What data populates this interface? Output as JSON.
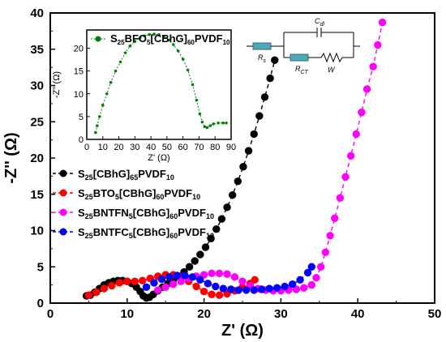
{
  "chart_data": [
    {
      "type": "scatter",
      "title": "",
      "xlabel": "Z' (Ω)",
      "ylabel": "-Z'' (Ω)",
      "xlim": [
        0,
        50
      ],
      "ylim": [
        0,
        40
      ],
      "xticks": [
        "0",
        "10",
        "20",
        "30",
        "40",
        "50"
      ],
      "yticks": [
        "0",
        "5",
        "10",
        "15",
        "20",
        "25",
        "30",
        "35",
        "40"
      ],
      "legend_position": "left-middle",
      "series": [
        {
          "name_main": "S",
          "name_parts": [
            [
              "25",
              true
            ],
            [
              "[CBhG]",
              false
            ],
            [
              "65",
              true
            ],
            [
              "PVDF",
              false
            ],
            [
              "10",
              true
            ]
          ],
          "color": "#000000",
          "points": [
            [
              4.7,
              1.0
            ],
            [
              5.2,
              1.1
            ],
            [
              5.8,
              1.5
            ],
            [
              6.4,
              2.0
            ],
            [
              7.0,
              2.5
            ],
            [
              7.6,
              2.8
            ],
            [
              8.2,
              3.0
            ],
            [
              8.8,
              3.1
            ],
            [
              9.4,
              3.1
            ],
            [
              10.0,
              3.0
            ],
            [
              10.6,
              2.7
            ],
            [
              11.2,
              2.2
            ],
            [
              11.7,
              1.6
            ],
            [
              12.1,
              1.0
            ],
            [
              12.5,
              0.7
            ],
            [
              12.9,
              0.8
            ],
            [
              13.4,
              1.2
            ],
            [
              14.0,
              1.7
            ],
            [
              14.6,
              2.2
            ],
            [
              15.3,
              2.7
            ],
            [
              16.0,
              3.2
            ],
            [
              16.7,
              3.7
            ],
            [
              17.4,
              4.3
            ],
            [
              18.1,
              5.0
            ],
            [
              18.8,
              5.8
            ],
            [
              19.5,
              6.7
            ],
            [
              20.2,
              7.7
            ],
            [
              20.9,
              8.9
            ],
            [
              21.6,
              10.2
            ],
            [
              22.3,
              11.6
            ],
            [
              23.0,
              13.2
            ],
            [
              23.7,
              14.9
            ],
            [
              24.4,
              16.8
            ],
            [
              25.1,
              18.8
            ],
            [
              25.8,
              21.0
            ],
            [
              26.5,
              23.3
            ],
            [
              27.2,
              25.8
            ],
            [
              27.9,
              28.4
            ],
            [
              28.6,
              31.0
            ],
            [
              29.2,
              33.5
            ]
          ]
        },
        {
          "name_main": "S",
          "name_parts": [
            [
              "25",
              true
            ],
            [
              "BTO",
              false
            ],
            [
              "5",
              true
            ],
            [
              "[CBhG]",
              false
            ],
            [
              "60",
              true
            ],
            [
              "PVDF",
              false
            ],
            [
              "10",
              true
            ]
          ],
          "color": "#ff0000",
          "points": [
            [
              5.0,
              1.1
            ],
            [
              6.0,
              1.5
            ],
            [
              7.0,
              2.0
            ],
            [
              8.0,
              2.4
            ],
            [
              9.0,
              2.8
            ],
            [
              10.0,
              3.0
            ],
            [
              11.0,
              3.0
            ],
            [
              12.0,
              3.1
            ],
            [
              13.0,
              3.4
            ],
            [
              14.0,
              3.7
            ],
            [
              15.0,
              3.9
            ],
            [
              16.0,
              3.9
            ],
            [
              17.0,
              3.6
            ],
            [
              18.0,
              3.0
            ],
            [
              19.0,
              2.3
            ],
            [
              20.0,
              1.6
            ],
            [
              21.0,
              1.2
            ],
            [
              22.0,
              1.1
            ],
            [
              23.0,
              1.3
            ],
            [
              24.0,
              1.7
            ],
            [
              25.0,
              2.2
            ],
            [
              26.0,
              2.7
            ],
            [
              26.6,
              3.2
            ]
          ]
        },
        {
          "name_main": "S",
          "name_parts": [
            [
              "25",
              true
            ],
            [
              "BNTFN",
              false
            ],
            [
              "5",
              true
            ],
            [
              "[CBhG]",
              false
            ],
            [
              "60",
              true
            ],
            [
              "PVDF",
              false
            ],
            [
              "10",
              true
            ]
          ],
          "color": "#ff00ff",
          "points": [
            [
              14.0,
              1.8
            ],
            [
              15.0,
              2.2
            ],
            [
              16.0,
              2.6
            ],
            [
              17.0,
              3.0
            ],
            [
              18.0,
              3.4
            ],
            [
              19.0,
              3.7
            ],
            [
              20.0,
              3.9
            ],
            [
              21.0,
              4.1
            ],
            [
              22.0,
              4.1
            ],
            [
              23.0,
              4.0
            ],
            [
              24.0,
              3.6
            ],
            [
              25.0,
              3.0
            ],
            [
              26.0,
              2.4
            ],
            [
              27.0,
              2.0
            ],
            [
              28.0,
              1.8
            ],
            [
              29.0,
              1.7
            ],
            [
              30.0,
              1.7
            ],
            [
              31.0,
              1.8
            ],
            [
              32.0,
              1.9
            ],
            [
              33.0,
              2.1
            ],
            [
              34.0,
              2.5
            ],
            [
              34.6,
              3.5
            ],
            [
              35.2,
              5.0
            ],
            [
              35.8,
              7.0
            ],
            [
              36.4,
              9.3
            ],
            [
              37.0,
              11.7
            ],
            [
              37.7,
              14.5
            ],
            [
              38.4,
              17.4
            ],
            [
              39.1,
              20.3
            ],
            [
              39.8,
              23.3
            ],
            [
              40.5,
              26.3
            ],
            [
              41.2,
              29.5
            ],
            [
              42.0,
              32.6
            ],
            [
              42.6,
              35.6
            ],
            [
              43.2,
              38.7
            ]
          ]
        },
        {
          "name_main": "S",
          "name_parts": [
            [
              "25",
              true
            ],
            [
              "BNTFC",
              false
            ],
            [
              "5",
              true
            ],
            [
              "[CBhG]",
              false
            ],
            [
              "60",
              true
            ],
            [
              "PVDF",
              false
            ],
            [
              "10",
              true
            ]
          ],
          "color": "#0000ff",
          "points": [
            [
              12.5,
              2.2
            ],
            [
              13.5,
              2.8
            ],
            [
              14.5,
              3.3
            ],
            [
              15.5,
              3.6
            ],
            [
              16.5,
              3.8
            ],
            [
              17.5,
              3.8
            ],
            [
              18.5,
              3.6
            ],
            [
              19.5,
              3.2
            ],
            [
              20.5,
              2.7
            ],
            [
              21.5,
              2.3
            ],
            [
              22.5,
              2.0
            ],
            [
              23.5,
              1.9
            ],
            [
              24.5,
              1.8
            ],
            [
              25.5,
              1.8
            ],
            [
              26.5,
              1.8
            ],
            [
              27.5,
              1.9
            ],
            [
              28.5,
              2.0
            ],
            [
              29.5,
              2.1
            ],
            [
              30.5,
              2.3
            ],
            [
              31.5,
              2.6
            ],
            [
              32.5,
              3.2
            ],
            [
              33.5,
              4.2
            ],
            [
              34.0,
              5.0
            ]
          ]
        }
      ],
      "inset": {
        "type": "scatter",
        "xlabel": "Z' (Ω)",
        "ylabel": "-Z'' (Ω)",
        "xlim": [
          0,
          90
        ],
        "ylim": [
          0,
          24
        ],
        "xticks": [
          "0",
          "10",
          "20",
          "30",
          "40",
          "50",
          "60",
          "70",
          "80",
          "90"
        ],
        "yticks": [
          "0",
          "5",
          "10",
          "15",
          "20"
        ],
        "legend_position": "top",
        "series": [
          {
            "name_main": "S",
            "name_parts": [
              [
                "25",
                true
              ],
              [
                "BFO",
                false
              ],
              [
                "5",
                true
              ],
              [
                "[CBhG]",
                false
              ],
              [
                "60",
                true
              ],
              [
                "PVDF",
                false
              ],
              [
                "10",
                true
              ]
            ],
            "color": "#008000",
            "points": [
              [
                5.5,
                1.5
              ],
              [
                6.5,
                3.0
              ],
              [
                8.0,
                5.0
              ],
              [
                10.0,
                7.5
              ],
              [
                12.5,
                10.0
              ],
              [
                15.0,
                12.5
              ],
              [
                18.0,
                15.0
              ],
              [
                21.0,
                17.0
              ],
              [
                24.0,
                19.0
              ],
              [
                27.0,
                20.5
              ],
              [
                30.0,
                21.5
              ],
              [
                33.0,
                22.2
              ],
              [
                36.0,
                22.7
              ],
              [
                39.0,
                23.0
              ],
              [
                42.0,
                23.1
              ],
              [
                45.0,
                23.0
              ],
              [
                48.0,
                22.6
              ],
              [
                51.0,
                21.8
              ],
              [
                54.0,
                20.8
              ],
              [
                57.0,
                19.4
              ],
              [
                60.0,
                17.6
              ],
              [
                63.0,
                15.2
              ],
              [
                66.0,
                12.0
              ],
              [
                68.5,
                8.6
              ],
              [
                70.5,
                5.6
              ],
              [
                72.0,
                3.8
              ],
              [
                73.5,
                2.8
              ],
              [
                75.0,
                2.6
              ],
              [
                77.0,
                3.0
              ],
              [
                79.0,
                3.4
              ],
              [
                82.0,
                3.6
              ],
              [
                85.0,
                3.6
              ],
              [
                87.0,
                3.6
              ]
            ]
          }
        ]
      },
      "circuit": {
        "labels": {
          "rs": "R",
          "rs_sub": "s",
          "rct": "R",
          "rct_sub": "CT",
          "w": "W",
          "cdl": "C",
          "cdl_sub": "dl"
        }
      }
    }
  ]
}
